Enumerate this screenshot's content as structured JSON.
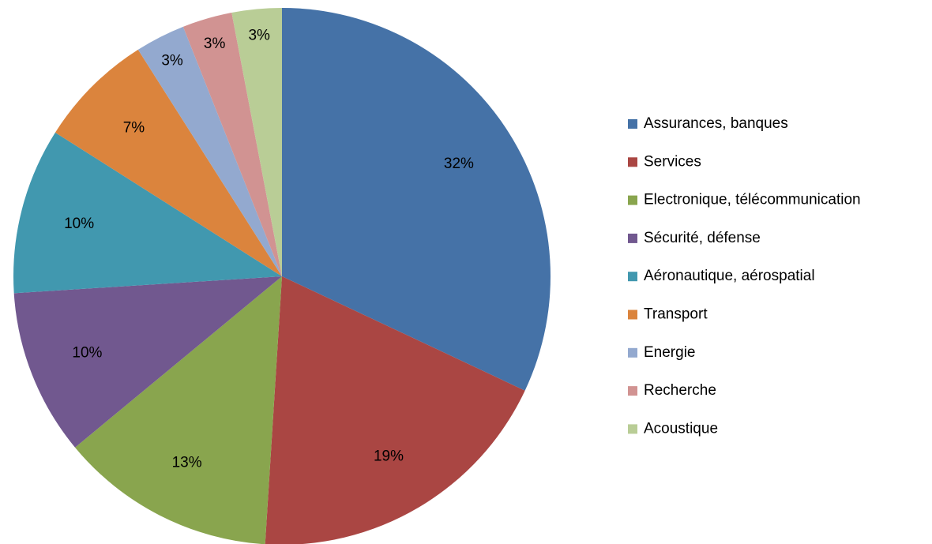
{
  "chart_data": {
    "type": "pie",
    "categories": [
      "Assurances, banques",
      "Services",
      "Electronique, télécommunication",
      "Sécurité, défense",
      "Aéronautique, aérospatial",
      "Transport",
      "Energie",
      "Recherche",
      "Acoustique"
    ],
    "values": [
      32,
      19,
      13,
      10,
      10,
      7,
      3,
      3,
      3
    ],
    "value_labels": [
      "32%",
      "19%",
      "13%",
      "10%",
      "10%",
      "7%",
      "3%",
      "3%",
      "3%"
    ],
    "colors": [
      "#4572a7",
      "#aa4643",
      "#89a54e",
      "#71588f",
      "#4198af",
      "#db843d",
      "#93a9cf",
      "#d19392",
      "#b9cd96"
    ],
    "legend": "right"
  }
}
